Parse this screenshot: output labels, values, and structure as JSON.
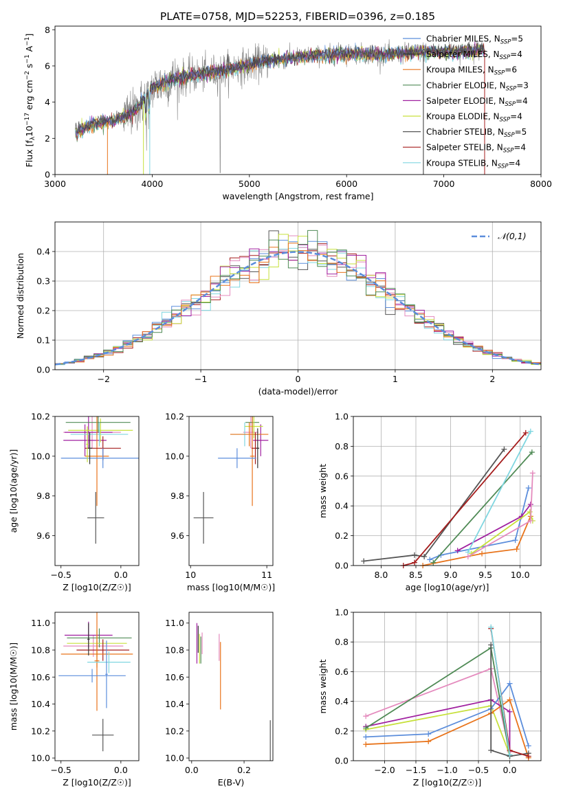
{
  "title": "PLATE=0758, MJD=52253, FIBERID=0396, z=0.185",
  "colors": {
    "chabrier_miles": "#5b8ddb",
    "salpeter_miles": "#333333",
    "kroupa_miles": "#e8731a",
    "chabrier_elodie": "#4f8a55",
    "salpeter_elodie": "#a020a0",
    "kroupa_elodie": "#c6e03a",
    "chabrier_stelib": "#555555",
    "salpeter_stelib": "#a51c1c",
    "kroupa_stelib": "#7fd6e0",
    "data": "#808080",
    "pink": "#e48abd",
    "gauss": "#5b8ddb"
  },
  "chart_data": [
    {
      "type": "line",
      "id": "spectrum",
      "xlabel": "wavelength [Angstrom, rest frame]",
      "ylabel": "Flux [f_λ 10^-17 erg cm^-2 s^-1 A^-1]",
      "xlim": [
        3000,
        8000
      ],
      "ylim": [
        0,
        8.2
      ],
      "xticks": [
        3000,
        4000,
        5000,
        6000,
        7000,
        8000
      ],
      "yticks": [
        0,
        2,
        4,
        6,
        8
      ],
      "legend_position": "right",
      "legend": [
        {
          "base": "Chabrier MILES, N",
          "sub": "SSP",
          "tail": "=5"
        },
        {
          "base": "Salpeter MILES, N",
          "sub": "SSP",
          "tail": "=4"
        },
        {
          "base": "Kroupa MILES, N",
          "sub": "SSP",
          "tail": "=6"
        },
        {
          "base": "Chabrier ELODIE, N",
          "sub": "SSP",
          "tail": "=3"
        },
        {
          "base": "Salpeter ELODIE, N",
          "sub": "SSP",
          "tail": "=4"
        },
        {
          "base": "Kroupa ELODIE, N",
          "sub": "SSP",
          "tail": "=4"
        },
        {
          "base": "Chabrier STELIB, N",
          "sub": "SSP",
          "tail": "=5"
        },
        {
          "base": "Salpeter STELIB, N",
          "sub": "SSP",
          "tail": "=4"
        },
        {
          "base": "Kroupa STELIB, N",
          "sub": "SSP",
          "tail": "=4"
        }
      ],
      "continuum": {
        "x": [
          3210,
          3400,
          3600,
          3800,
          3900,
          4000,
          4200,
          4400,
          4600,
          4800,
          5000,
          5200,
          5400,
          5600,
          5800,
          6000,
          6200,
          6400,
          6600,
          6800,
          7000,
          7200,
          7400
        ],
        "y": [
          2.3,
          2.85,
          2.95,
          3.4,
          4.0,
          4.8,
          5.25,
          5.45,
          5.6,
          5.85,
          6.05,
          6.3,
          6.4,
          6.55,
          6.6,
          6.7,
          6.65,
          6.6,
          6.7,
          6.8,
          6.75,
          6.8,
          6.9
        ]
      }
    },
    {
      "type": "line",
      "id": "residuals",
      "xlabel": "(data-model)/error",
      "ylabel": "Normed distribution",
      "xlim": [
        -2.5,
        2.5
      ],
      "ylim": [
        0,
        0.5
      ],
      "xticks": [
        -2,
        -1,
        0,
        1,
        2
      ],
      "yticks": [
        0.0,
        0.1,
        0.2,
        0.3,
        0.4
      ],
      "gauss_label": "(0,1)",
      "gauss_symbol": "𝒩",
      "bin_width": 0.1
    },
    {
      "type": "scatter",
      "id": "age_vs_z",
      "xlabel": "Z [log10(Z/Z☉)]",
      "ylabel": "age [log10(age/yr)]",
      "xlim": [
        -0.55,
        0.15
      ],
      "ylim": [
        9.45,
        10.2
      ],
      "xticks": [
        -0.5,
        0.0
      ],
      "yticks": [
        9.6,
        9.8,
        10.0,
        10.2
      ],
      "points": [
        {
          "x": -0.24,
          "y": 10.12,
          "xerr": 0.24,
          "yerr": 0.08,
          "color": "pink"
        },
        {
          "x": -0.27,
          "y": 10.12,
          "xerr": 0.2,
          "yerr": 0.08,
          "color": "salpeter_elodie"
        },
        {
          "x": -0.3,
          "y": 10.08,
          "xerr": 0.18,
          "yerr": 0.08,
          "color": "salpeter_elodie"
        },
        {
          "x": -0.17,
          "y": 10.13,
          "xerr": 0.27,
          "yerr": 0.06,
          "color": "kroupa_elodie"
        },
        {
          "x": -0.19,
          "y": 10.17,
          "xerr": 0.27,
          "yerr": 0.05,
          "color": "chabrier_elodie"
        },
        {
          "x": -0.18,
          "y": 10.11,
          "xerr": 0.24,
          "yerr": 0.06,
          "color": "kroupa_stelib"
        },
        {
          "x": -0.2,
          "y": 10.0,
          "xerr": 0.1,
          "yerr": 0.25,
          "color": "kroupa_miles"
        },
        {
          "x": -0.15,
          "y": 10.04,
          "xerr": 0.15,
          "yerr": 0.06,
          "color": "salpeter_stelib"
        },
        {
          "x": -0.15,
          "y": 9.99,
          "xerr": 0.35,
          "yerr": 0.05,
          "color": "chabrier_miles"
        },
        {
          "x": -0.26,
          "y": 10.04,
          "xerr": 0.02,
          "yerr": 0.08,
          "color": "salpeter_miles"
        },
        {
          "x": -0.28,
          "y": 10.06,
          "xerr": 0.01,
          "yerr": 0.09,
          "color": "kroupa_elodie"
        },
        {
          "x": -0.21,
          "y": 9.69,
          "xerr": 0.07,
          "yerr": 0.13,
          "color": "chabrier_stelib"
        }
      ]
    },
    {
      "type": "scatter",
      "id": "age_vs_mass",
      "xlabel": "mass [log10(M/M☉)]",
      "ylabel": "",
      "xlim": [
        9.98,
        11.08
      ],
      "ylim": [
        9.45,
        10.2
      ],
      "xticks": [
        10,
        11
      ],
      "yticks": [
        9.6,
        9.8,
        10.0,
        10.2
      ],
      "points": [
        {
          "x": 10.79,
          "y": 10.12,
          "xerr": 0.1,
          "yerr": 0.08,
          "color": "pink"
        },
        {
          "x": 10.92,
          "y": 10.08,
          "xerr": 0.1,
          "yerr": 0.08,
          "color": "salpeter_elodie"
        },
        {
          "x": 10.81,
          "y": 10.17,
          "xerr": 0.09,
          "yerr": 0.05,
          "color": "chabrier_elodie"
        },
        {
          "x": 10.83,
          "y": 10.15,
          "xerr": 0.12,
          "yerr": 0.06,
          "color": "kroupa_elodie"
        },
        {
          "x": 10.71,
          "y": 10.11,
          "xerr": 0.18,
          "yerr": 0.06,
          "color": "kroupa_stelib"
        },
        {
          "x": 10.77,
          "y": 10.11,
          "xerr": 0.25,
          "yerr": 0.06,
          "color": "kroupa_miles"
        },
        {
          "x": 10.81,
          "y": 10.0,
          "xerr": 0.03,
          "yerr": 0.25,
          "color": "kroupa_miles"
        },
        {
          "x": 10.85,
          "y": 10.04,
          "xerr": 0.05,
          "yerr": 0.08,
          "color": "salpeter_stelib"
        },
        {
          "x": 10.61,
          "y": 9.99,
          "xerr": 0.25,
          "yerr": 0.05,
          "color": "chabrier_miles"
        },
        {
          "x": 10.88,
          "y": 10.04,
          "xerr": 0.02,
          "yerr": 0.1,
          "color": "salpeter_miles"
        },
        {
          "x": 10.17,
          "y": 9.69,
          "xerr": 0.13,
          "yerr": 0.13,
          "color": "chabrier_stelib"
        }
      ]
    },
    {
      "type": "line",
      "id": "mass_weight_vs_age",
      "xlabel": "age [log10(age/yr)]",
      "ylabel": "mass weight",
      "xlim": [
        7.6,
        10.3
      ],
      "ylim": [
        0,
        1.0
      ],
      "xticks": [
        8.0,
        8.5,
        9.0,
        9.5,
        10.0
      ],
      "yticks": [
        0.0,
        0.2,
        0.4,
        0.6,
        0.8,
        1.0
      ],
      "series": [
        {
          "color": "chabrier_stelib",
          "x": [
            7.75,
            8.48,
            8.62,
            9.77
          ],
          "y": [
            0.03,
            0.07,
            0.06,
            0.78
          ]
        },
        {
          "color": "salpeter_stelib",
          "x": [
            8.32,
            8.48,
            10.08
          ],
          "y": [
            0.0,
            0.02,
            0.89
          ]
        },
        {
          "color": "chabrier_miles",
          "x": [
            8.7,
            8.86,
            9.93,
            10.12
          ],
          "y": [
            0.04,
            0.07,
            0.17,
            0.52
          ]
        },
        {
          "color": "kroupa_miles",
          "x": [
            8.6,
            9.45,
            9.95,
            10.15
          ],
          "y": [
            0.0,
            0.08,
            0.11,
            0.33
          ]
        },
        {
          "color": "chabrier_elodie",
          "x": [
            8.75,
            10.17
          ],
          "y": [
            0.02,
            0.76
          ]
        },
        {
          "color": "salpeter_elodie",
          "x": [
            9.1,
            10.02,
            10.15
          ],
          "y": [
            0.1,
            0.33,
            0.41
          ]
        },
        {
          "color": "kroupa_elodie",
          "x": [
            9.3,
            10.14,
            10.18
          ],
          "y": [
            0.08,
            0.36,
            0.3
          ]
        },
        {
          "color": "kroupa_stelib",
          "x": [
            9.25,
            10.15
          ],
          "y": [
            0.09,
            0.9
          ]
        },
        {
          "color": "pink",
          "x": [
            9.25,
            10.15,
            10.18
          ],
          "y": [
            0.06,
            0.3,
            0.62
          ]
        }
      ]
    },
    {
      "type": "scatter",
      "id": "mass_vs_z",
      "xlabel": "Z [log10(Z/Z☉)]",
      "ylabel": "mass [log10(M/M☉)]",
      "xlim": [
        -0.55,
        0.15
      ],
      "ylim": [
        9.98,
        11.08
      ],
      "xticks": [
        -0.5,
        0.0
      ],
      "yticks": [
        10.0,
        10.2,
        10.4,
        10.6,
        10.8,
        11.0
      ],
      "points": [
        {
          "x": -0.23,
          "y": 10.83,
          "xerr": 0.25,
          "yerr": 0.08,
          "color": "pink"
        },
        {
          "x": -0.27,
          "y": 10.91,
          "xerr": 0.2,
          "yerr": 0.1,
          "color": "salpeter_elodie"
        },
        {
          "x": -0.18,
          "y": 10.89,
          "xerr": 0.27,
          "yerr": 0.07,
          "color": "chabrier_elodie"
        },
        {
          "x": -0.2,
          "y": 10.85,
          "xerr": 0.25,
          "yerr": 0.1,
          "color": "kroupa_elodie"
        },
        {
          "x": -0.15,
          "y": 10.8,
          "xerr": 0.22,
          "yerr": 0.08,
          "color": "salpeter_stelib"
        },
        {
          "x": -0.2,
          "y": 10.77,
          "xerr": 0.3,
          "yerr": 0.1,
          "color": "kroupa_miles"
        },
        {
          "x": -0.2,
          "y": 10.72,
          "xerr": 0.02,
          "yerr": 0.37,
          "color": "kroupa_miles"
        },
        {
          "x": -0.1,
          "y": 10.71,
          "xerr": 0.18,
          "yerr": 0.08,
          "color": "kroupa_stelib"
        },
        {
          "x": -0.24,
          "y": 10.61,
          "xerr": 0.28,
          "yerr": 0.05,
          "color": "chabrier_miles"
        },
        {
          "x": -0.12,
          "y": 10.62,
          "xerr": 0.01,
          "yerr": 0.25,
          "color": "chabrier_miles"
        },
        {
          "x": -0.27,
          "y": 10.88,
          "xerr": 0.01,
          "yerr": 0.12,
          "color": "salpeter_miles"
        },
        {
          "x": -0.15,
          "y": 10.17,
          "xerr": 0.09,
          "yerr": 0.12,
          "color": "chabrier_stelib"
        }
      ]
    },
    {
      "type": "scatter",
      "id": "mass_vs_ebv",
      "xlabel": "E(B-V)",
      "ylabel": "",
      "xlim": [
        -0.01,
        0.31
      ],
      "ylim": [
        9.98,
        11.08
      ],
      "xticks": [
        0.0,
        0.2
      ],
      "yticks": [
        10.0,
        10.2,
        10.4,
        10.6,
        10.8,
        11.0
      ],
      "points": [
        {
          "x": 0.02,
          "y": 10.85,
          "xerr": 0.0,
          "yerr": 0.15,
          "color": "salpeter_elodie"
        },
        {
          "x": 0.025,
          "y": 10.88,
          "xerr": 0.0,
          "yerr": 0.1,
          "color": "salpeter_miles"
        },
        {
          "x": 0.03,
          "y": 10.81,
          "xerr": 0.0,
          "yerr": 0.11,
          "color": "kroupa_elodie"
        },
        {
          "x": 0.035,
          "y": 10.8,
          "xerr": 0.0,
          "yerr": 0.1,
          "color": "chabrier_elodie"
        },
        {
          "x": 0.04,
          "y": 10.85,
          "xerr": 0.0,
          "yerr": 0.08,
          "color": "pink"
        },
        {
          "x": 0.105,
          "y": 10.82,
          "xerr": 0.0,
          "yerr": 0.1,
          "color": "pink"
        },
        {
          "x": 0.11,
          "y": 10.61,
          "xerr": 0.0,
          "yerr": 0.25,
          "color": "kroupa_miles"
        },
        {
          "x": 0.3,
          "y": 10.12,
          "xerr": 0.0,
          "yerr": 0.16,
          "color": "chabrier_stelib"
        }
      ]
    },
    {
      "type": "line",
      "id": "mass_weight_vs_z",
      "xlabel": "Z [log10(Z/Z☉)]",
      "ylabel": "mass weight",
      "xlim": [
        -2.5,
        0.5
      ],
      "ylim": [
        0,
        1.0
      ],
      "xticks": [
        -2.0,
        -1.5,
        -1.0,
        -0.5,
        0.0
      ],
      "yticks": [
        0.0,
        0.2,
        0.4,
        0.6,
        0.8,
        1.0
      ],
      "series": [
        {
          "color": "pink",
          "x": [
            -2.3,
            -0.3,
            0.0
          ],
          "y": [
            0.3,
            0.62,
            0.06
          ]
        },
        {
          "color": "salpeter_elodie",
          "x": [
            -2.3,
            -0.3,
            0.0,
            0.0
          ],
          "y": [
            0.23,
            0.41,
            0.33,
            0.04
          ]
        },
        {
          "color": "kroupa_elodie",
          "x": [
            -2.3,
            -0.3,
            0.0
          ],
          "y": [
            0.21,
            0.37,
            0.04
          ]
        },
        {
          "color": "chabrier_miles",
          "x": [
            -2.3,
            -1.3,
            -0.3,
            0.0,
            0.3
          ],
          "y": [
            0.16,
            0.18,
            0.35,
            0.52,
            0.1
          ]
        },
        {
          "color": "kroupa_miles",
          "x": [
            -2.3,
            -1.3,
            -0.3,
            0.0,
            0.3
          ],
          "y": [
            0.11,
            0.13,
            0.32,
            0.41,
            0.02
          ]
        },
        {
          "color": "chabrier_elodie",
          "x": [
            -2.3,
            -0.3,
            0.0
          ],
          "y": [
            0.22,
            0.76,
            0.03
          ]
        },
        {
          "color": "chabrier_stelib",
          "x": [
            -0.3,
            -0.3,
            0.0,
            0.3
          ],
          "y": [
            0.78,
            0.07,
            0.03,
            0.05
          ]
        },
        {
          "color": "salpeter_stelib",
          "x": [
            -0.3,
            0.0,
            0.3
          ],
          "y": [
            0.89,
            0.07,
            0.03
          ]
        },
        {
          "color": "kroupa_stelib",
          "x": [
            -0.3,
            0.0
          ],
          "y": [
            0.9,
            0.04
          ]
        }
      ]
    }
  ]
}
